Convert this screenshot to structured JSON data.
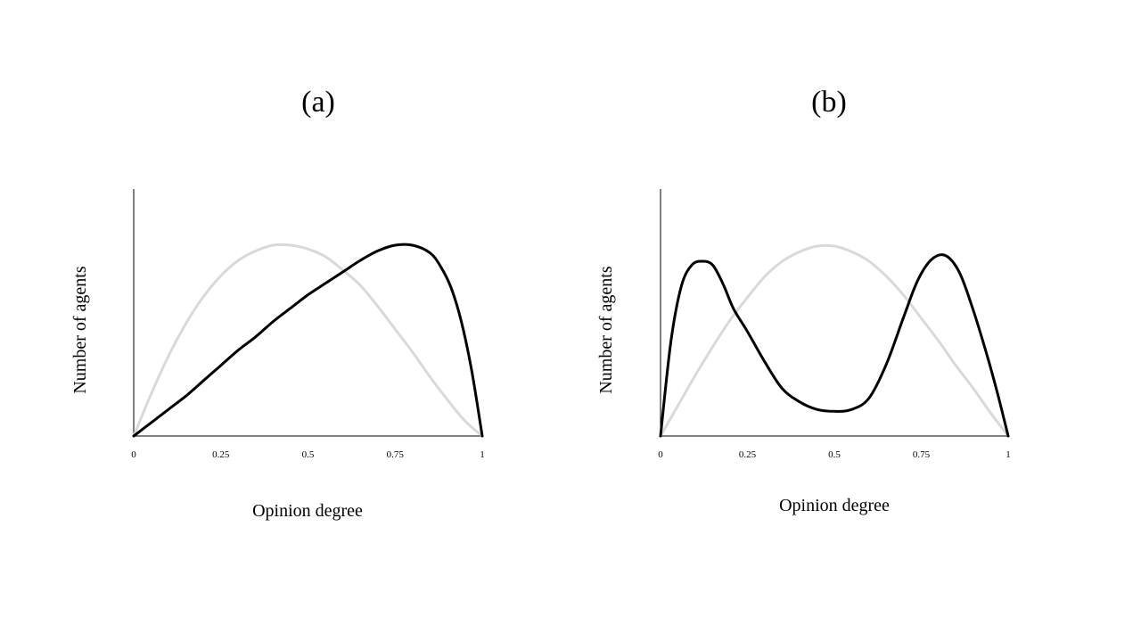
{
  "chart_data": [
    {
      "type": "line",
      "title": "(a)",
      "xlabel": "Opinion degree",
      "ylabel": "Number of agents",
      "xlim": [
        0,
        1
      ],
      "ylim": [
        0,
        1
      ],
      "xticks": [
        0,
        0.25,
        0.5,
        0.75,
        1
      ],
      "xtick_labels": [
        "0",
        "0.25",
        "0.5",
        "0.75",
        "1"
      ],
      "yticks": [],
      "grid": false,
      "series": [
        {
          "color": "#d9d9d9",
          "x": [
            0,
            0.05,
            0.1,
            0.15,
            0.2,
            0.25,
            0.3,
            0.35,
            0.4,
            0.45,
            0.5,
            0.55,
            0.6,
            0.65,
            0.7,
            0.75,
            0.8,
            0.85,
            0.9,
            0.95,
            1
          ],
          "y": [
            0,
            0.22,
            0.42,
            0.59,
            0.73,
            0.84,
            0.92,
            0.97,
            1.0,
            1.0,
            0.98,
            0.94,
            0.87,
            0.79,
            0.68,
            0.56,
            0.44,
            0.31,
            0.19,
            0.08,
            0
          ]
        },
        {
          "color": "#000000",
          "x": [
            0,
            0.05,
            0.1,
            0.15,
            0.2,
            0.25,
            0.3,
            0.35,
            0.4,
            0.45,
            0.5,
            0.55,
            0.6,
            0.65,
            0.7,
            0.75,
            0.8,
            0.85,
            0.88,
            0.91,
            0.94,
            0.97,
            1
          ],
          "y": [
            0,
            0.07,
            0.14,
            0.21,
            0.29,
            0.37,
            0.45,
            0.52,
            0.6,
            0.67,
            0.74,
            0.8,
            0.86,
            0.92,
            0.97,
            1.0,
            1.0,
            0.96,
            0.89,
            0.78,
            0.6,
            0.34,
            0
          ]
        }
      ]
    },
    {
      "type": "line",
      "title": "(b)",
      "xlabel": "Opinion degree",
      "ylabel": "Number of agents",
      "xlim": [
        0,
        1
      ],
      "ylim": [
        0,
        1
      ],
      "xticks": [
        0,
        0.25,
        0.5,
        0.75,
        1
      ],
      "xtick_labels": [
        "0",
        "0.25",
        "0.5",
        "0.75",
        "1"
      ],
      "yticks": [],
      "grid": false,
      "series": [
        {
          "color": "#d9d9d9",
          "x": [
            0,
            0.05,
            0.1,
            0.15,
            0.2,
            0.25,
            0.3,
            0.35,
            0.4,
            0.45,
            0.5,
            0.55,
            0.6,
            0.65,
            0.7,
            0.75,
            0.8,
            0.85,
            0.9,
            0.95,
            1
          ],
          "y": [
            0,
            0.16,
            0.32,
            0.47,
            0.61,
            0.73,
            0.84,
            0.92,
            0.97,
            1.0,
            1.0,
            0.97,
            0.92,
            0.84,
            0.74,
            0.62,
            0.5,
            0.37,
            0.25,
            0.12,
            0
          ]
        },
        {
          "color": "#000000",
          "x": [
            0,
            0.03,
            0.06,
            0.09,
            0.12,
            0.15,
            0.18,
            0.21,
            0.25,
            0.3,
            0.35,
            0.4,
            0.45,
            0.5,
            0.55,
            0.6,
            0.65,
            0.7,
            0.74,
            0.78,
            0.82,
            0.86,
            0.9,
            0.94,
            0.97,
            1
          ],
          "y": [
            0,
            0.5,
            0.79,
            0.9,
            0.92,
            0.9,
            0.8,
            0.67,
            0.55,
            0.39,
            0.25,
            0.18,
            0.14,
            0.13,
            0.14,
            0.2,
            0.38,
            0.63,
            0.82,
            0.93,
            0.95,
            0.86,
            0.66,
            0.42,
            0.22,
            0
          ]
        }
      ]
    }
  ]
}
